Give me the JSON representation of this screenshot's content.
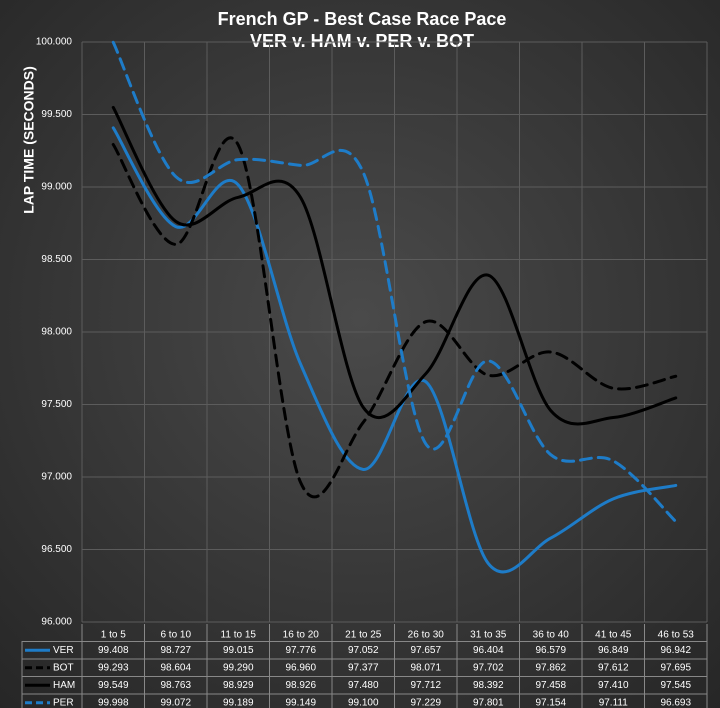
{
  "chart_data": {
    "type": "line",
    "title": "French GP - Best Case Race Pace",
    "subtitle": "VER v. HAM v. PER v. BOT",
    "y_label": "LAP TIME (SECONDS)",
    "categories": [
      "1 to 5",
      "6 to 10",
      "11 to 15",
      "16 to 20",
      "21 to 25",
      "26 to 30",
      "31 to 35",
      "36 to 40",
      "41 to 45",
      "46 to 53"
    ],
    "series": [
      {
        "name": "VER",
        "color": "#1e7cc8",
        "dashed": false,
        "values": [
          99.408,
          98.727,
          99.015,
          97.776,
          97.052,
          97.657,
          96.404,
          96.579,
          96.849,
          96.942
        ],
        "value_labels": [
          "99.408",
          "98.727",
          "99.015",
          "97.776",
          "97.052",
          "97.657",
          "96.404",
          "96.579",
          "96.849",
          "96.942"
        ]
      },
      {
        "name": "BOT",
        "color": "#000000",
        "dashed": true,
        "values": [
          99.293,
          98.604,
          99.29,
          96.96,
          97.377,
          98.071,
          97.702,
          97.862,
          97.612,
          97.695
        ],
        "value_labels": [
          "99.293",
          "98.604",
          "99.290",
          "96.960",
          "97.377",
          "98.071",
          "97.702",
          "97.862",
          "97.612",
          "97.695"
        ]
      },
      {
        "name": "HAM",
        "color": "#000000",
        "dashed": false,
        "values": [
          99.549,
          98.763,
          98.929,
          98.926,
          97.48,
          97.712,
          98.392,
          97.458,
          97.41,
          97.545
        ],
        "value_labels": [
          "99.549",
          "98.763",
          "98.929",
          "98.926",
          "97.480",
          "97.712",
          "98.392",
          "97.458",
          "97.410",
          "97.545"
        ]
      },
      {
        "name": "PER",
        "color": "#1e7cc8",
        "dashed": true,
        "values": [
          99.998,
          99.072,
          99.189,
          99.149,
          99.1,
          97.229,
          97.801,
          97.154,
          97.111,
          96.693
        ],
        "value_labels": [
          "99.998",
          "99.072",
          "99.189",
          "99.149",
          "99.100",
          "97.229",
          "97.801",
          "97.154",
          "97.111",
          "96.693"
        ]
      }
    ],
    "ylim": [
      96,
      100
    ],
    "yticks": [
      {
        "value": 96,
        "label": "96.000"
      },
      {
        "value": 96.5,
        "label": "96.500"
      },
      {
        "value": 97,
        "label": "97.000"
      },
      {
        "value": 97.5,
        "label": "97.500"
      },
      {
        "value": 98,
        "label": "98.000"
      },
      {
        "value": 98.5,
        "label": "98.500"
      },
      {
        "value": 99,
        "label": "99.000"
      },
      {
        "value": 99.5,
        "label": "99.500"
      },
      {
        "value": 100,
        "label": "100.000"
      }
    ],
    "grid": true
  }
}
